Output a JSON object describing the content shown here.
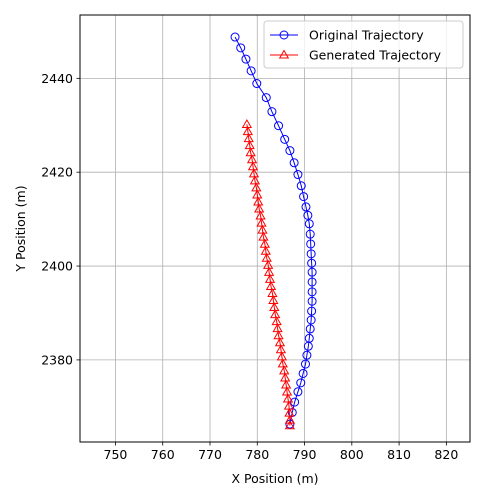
{
  "chart_data": {
    "type": "line",
    "xlabel": "X Position (m)",
    "ylabel": "Y Position (m)",
    "xlim": [
      742.5,
      825
    ],
    "ylim": [
      2362.5,
      2453.5
    ],
    "xticks": [
      750,
      760,
      770,
      780,
      790,
      800,
      810,
      820
    ],
    "yticks": [
      2380,
      2400,
      2420,
      2440
    ],
    "grid": true,
    "legend": "top-right",
    "series": [
      {
        "name": "Original Trajectory",
        "color": "#0000ff",
        "marker": "circle",
        "points": [
          [
            775.3,
            2448.8
          ],
          [
            776.5,
            2446.5
          ],
          [
            777.6,
            2444.1
          ],
          [
            778.7,
            2441.6
          ],
          [
            779.9,
            2438.9
          ],
          [
            781.9,
            2435.9
          ],
          [
            783.1,
            2432.9
          ],
          [
            784.5,
            2429.9
          ],
          [
            785.8,
            2427.0
          ],
          [
            786.9,
            2424.6
          ],
          [
            787.8,
            2422.0
          ],
          [
            788.6,
            2419.5
          ],
          [
            789.3,
            2417.1
          ],
          [
            789.8,
            2414.8
          ],
          [
            790.3,
            2412.6
          ],
          [
            790.7,
            2410.8
          ],
          [
            791.0,
            2409.0
          ],
          [
            791.2,
            2406.8
          ],
          [
            791.3,
            2404.7
          ],
          [
            791.4,
            2402.6
          ],
          [
            791.5,
            2400.6
          ],
          [
            791.6,
            2398.7
          ],
          [
            791.6,
            2396.6
          ],
          [
            791.6,
            2394.5
          ],
          [
            791.6,
            2392.5
          ],
          [
            791.5,
            2390.4
          ],
          [
            791.4,
            2388.5
          ],
          [
            791.2,
            2386.6
          ],
          [
            791.0,
            2384.6
          ],
          [
            790.8,
            2382.9
          ],
          [
            790.5,
            2381.0
          ],
          [
            790.2,
            2379.1
          ],
          [
            789.7,
            2377.1
          ],
          [
            789.2,
            2375.1
          ],
          [
            788.6,
            2373.2
          ],
          [
            787.9,
            2371.0
          ],
          [
            787.4,
            2368.8
          ],
          [
            786.9,
            2366.3
          ]
        ]
      },
      {
        "name": "Generated Trajectory",
        "color": "#ff0000",
        "marker": "triangle",
        "points": [
          [
            777.8,
            2430.2
          ],
          [
            778.0,
            2428.7
          ],
          [
            778.2,
            2427.2
          ],
          [
            778.4,
            2425.7
          ],
          [
            778.6,
            2424.2
          ],
          [
            778.9,
            2422.7
          ],
          [
            779.1,
            2421.2
          ],
          [
            779.3,
            2419.7
          ],
          [
            779.5,
            2418.2
          ],
          [
            779.8,
            2416.7
          ],
          [
            780.0,
            2415.2
          ],
          [
            780.2,
            2413.7
          ],
          [
            780.4,
            2412.2
          ],
          [
            780.7,
            2410.7
          ],
          [
            780.9,
            2409.2
          ],
          [
            781.1,
            2407.7
          ],
          [
            781.3,
            2406.2
          ],
          [
            781.6,
            2404.7
          ],
          [
            781.8,
            2403.2
          ],
          [
            782.0,
            2401.7
          ],
          [
            782.3,
            2400.2
          ],
          [
            782.5,
            2398.7
          ],
          [
            782.7,
            2397.2
          ],
          [
            782.9,
            2395.7
          ],
          [
            783.2,
            2394.2
          ],
          [
            783.4,
            2392.7
          ],
          [
            783.6,
            2391.2
          ],
          [
            783.8,
            2389.7
          ],
          [
            784.1,
            2388.2
          ],
          [
            784.3,
            2386.7
          ],
          [
            784.5,
            2385.2
          ],
          [
            784.8,
            2383.7
          ],
          [
            785.0,
            2382.2
          ],
          [
            785.2,
            2380.7
          ],
          [
            785.4,
            2379.2
          ],
          [
            785.7,
            2377.7
          ],
          [
            785.9,
            2376.2
          ],
          [
            786.1,
            2374.7
          ],
          [
            786.3,
            2373.2
          ],
          [
            786.5,
            2371.7
          ],
          [
            786.7,
            2370.2
          ],
          [
            786.8,
            2368.7
          ],
          [
            786.9,
            2367.2
          ],
          [
            786.9,
            2366.0
          ]
        ]
      }
    ]
  }
}
